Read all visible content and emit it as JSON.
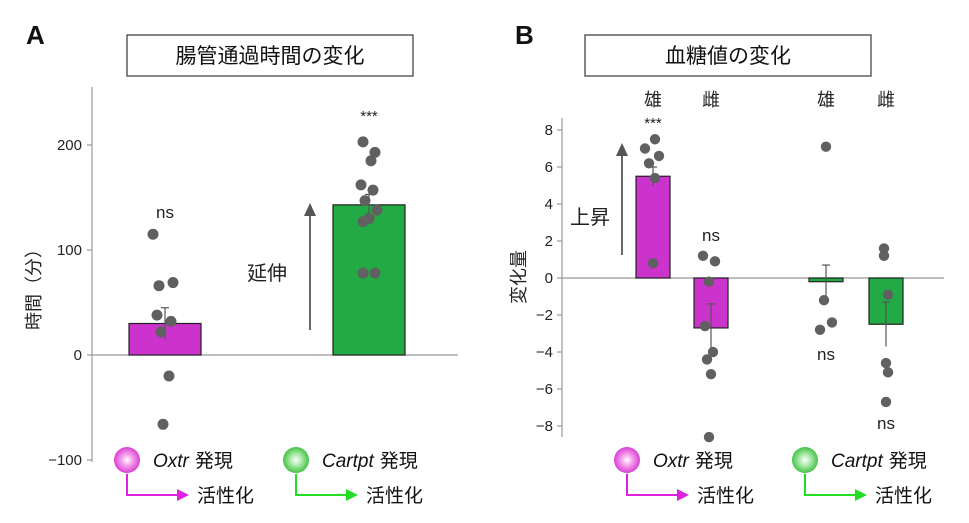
{
  "colors": {
    "magenta": "#cc33cc",
    "magenta_edge": "#222222",
    "green": "#22aa44",
    "green_edge": "#222222",
    "dot": "#606060",
    "axis": "#999999",
    "magenta_arrow": "#e020e0",
    "green_arrow": "#22dd22"
  },
  "panels": [
    {
      "letter": "A",
      "title": "腸管通過時間の変化",
      "ylabel": "時間（分）",
      "arrow_label": "延伸"
    },
    {
      "letter": "B",
      "title": "血糖値の変化",
      "ylabel": "変化量",
      "arrow_label": "上昇",
      "group_labels": [
        "雄",
        "雌",
        "雄",
        "雌"
      ]
    }
  ],
  "legend": [
    {
      "name": "Oxtr",
      "suffix": " 発現",
      "action": "活性化",
      "color": "magenta"
    },
    {
      "name": "Cartpt",
      "suffix": " 発現",
      "action": "活性化",
      "color": "green"
    }
  ],
  "chart_data": [
    {
      "type": "bar",
      "title": "腸管通過時間の変化",
      "ylabel": "時間（分）",
      "ylim": [
        -100,
        250
      ],
      "yticks": [
        -100,
        0,
        100,
        200
      ],
      "categories": [
        "Oxtr 発現 活性化",
        "Cartpt 発現 活性化"
      ],
      "values": [
        30,
        143
      ],
      "errors": [
        15,
        10
      ],
      "colors": [
        "magenta",
        "green"
      ],
      "significance": [
        "ns",
        "***"
      ],
      "points": [
        [
          115,
          69,
          66,
          38,
          32,
          22,
          -20,
          -66
        ],
        [
          203,
          193,
          185,
          162,
          157,
          147,
          138,
          130,
          127,
          78,
          78
        ]
      ],
      "grid": false
    },
    {
      "type": "bar",
      "title": "血糖値の変化",
      "ylabel": "変化量",
      "ylim": [
        -8.5,
        8.5
      ],
      "yticks": [
        -8,
        -6,
        -4,
        -2,
        0,
        2,
        4,
        6,
        8
      ],
      "categories": [
        "雄",
        "雌",
        "雄",
        "雌"
      ],
      "groups": [
        "Oxtr 発現 活性化",
        "Oxtr 発現 活性化",
        "Cartpt 発現 活性化",
        "Cartpt 発現 活性化"
      ],
      "values": [
        5.5,
        -2.7,
        -0.2,
        -2.5
      ],
      "errors": [
        0.5,
        1.3,
        0.9,
        1.2
      ],
      "colors": [
        "magenta",
        "magenta",
        "green",
        "green"
      ],
      "significance": [
        "***",
        "ns",
        "ns",
        "ns"
      ],
      "points": [
        [
          7.5,
          7.0,
          6.6,
          6.2,
          5.4,
          0.8
        ],
        [
          1.2,
          0.9,
          -0.2,
          -2.6,
          -4.0,
          -4.4,
          -5.2,
          -8.6
        ],
        [
          7.1,
          -1.2,
          -2.4,
          -2.8
        ],
        [
          1.6,
          1.2,
          -0.9,
          -4.6,
          -5.1,
          -6.7
        ]
      ],
      "grid": false
    }
  ]
}
